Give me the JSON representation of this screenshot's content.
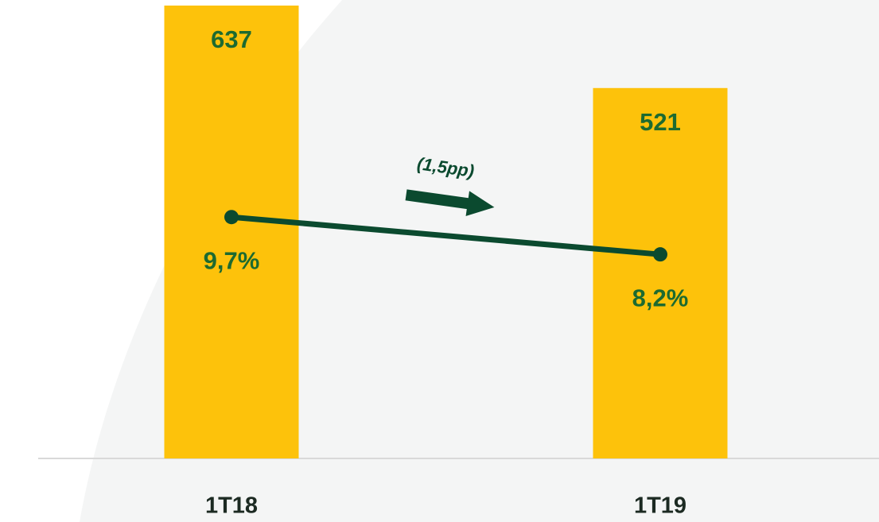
{
  "chart_data": {
    "type": "bar_line",
    "categories": [
      "1T18",
      "1T19"
    ],
    "series": [
      {
        "type": "bar",
        "color": "#fdc20b",
        "values": [
          637,
          521
        ]
      },
      {
        "type": "line",
        "axis": "y2",
        "color": "#0b4a2f",
        "values": [
          9.7,
          8.2
        ],
        "value_labels": [
          "9,7%",
          "8,2%"
        ]
      }
    ],
    "ylim": [
      0,
      637
    ],
    "y2lim": [
      0,
      18.2
    ],
    "annotations": [
      "(1,5pp)"
    ]
  }
}
